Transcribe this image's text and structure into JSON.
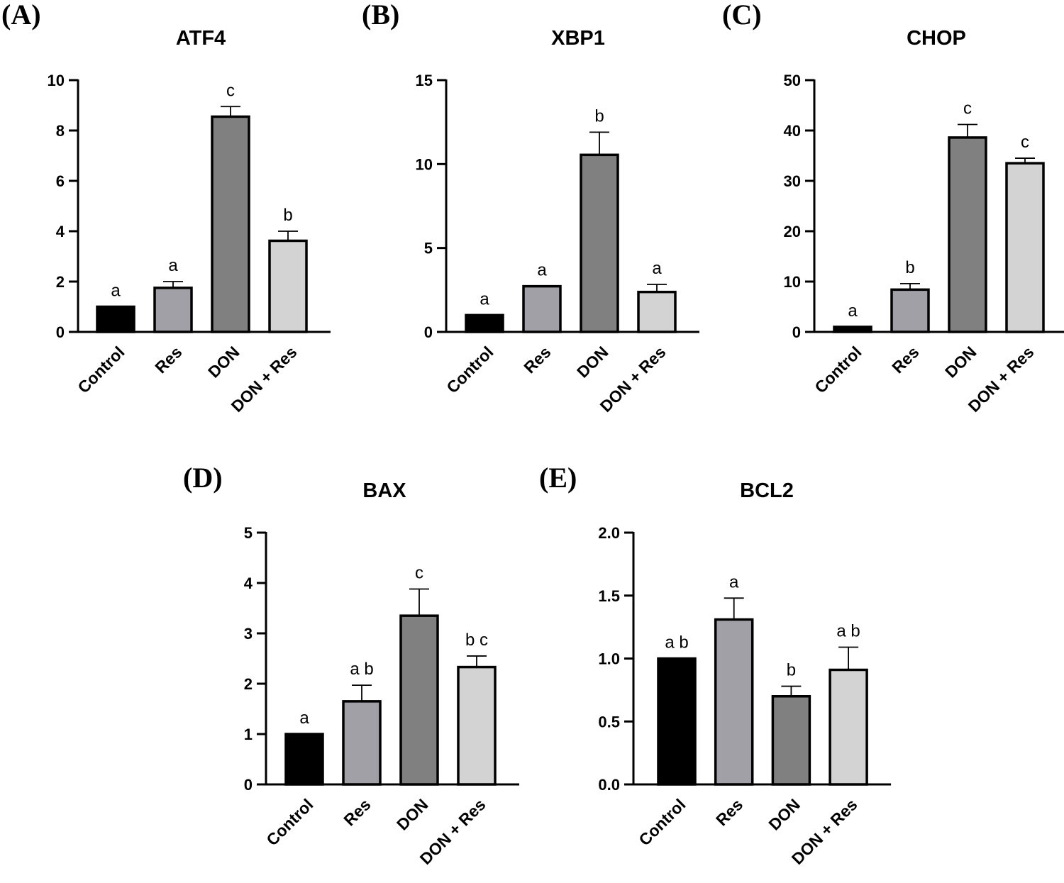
{
  "chart_data": [
    {
      "type": "bar",
      "panel": "(A)",
      "title": "ATF4",
      "categories": [
        "Control",
        "Res",
        "DON",
        "DON + Res"
      ],
      "values": [
        1.0,
        1.75,
        8.55,
        3.62
      ],
      "errors": [
        0.0,
        0.25,
        0.4,
        0.38
      ],
      "significance": [
        "a",
        "a",
        "c",
        "b"
      ],
      "colors": [
        "#000000",
        "#a0a0a6",
        "#808080",
        "#d3d3d3"
      ],
      "ylim": [
        0,
        10
      ],
      "yticks": [
        0,
        2,
        4,
        6,
        8,
        10
      ],
      "ytick_labels": [
        "0",
        "2",
        "4",
        "6",
        "8",
        "10"
      ],
      "grid": false
    },
    {
      "type": "bar",
      "panel": "(B)",
      "title": "XBP1",
      "categories": [
        "Control",
        "Res",
        "DON",
        "DON + Res"
      ],
      "values": [
        1.0,
        2.72,
        10.55,
        2.38
      ],
      "errors": [
        0.0,
        0.0,
        1.35,
        0.45
      ],
      "significance": [
        "a",
        "a",
        "b",
        "a"
      ],
      "colors": [
        "#000000",
        "#a0a0a6",
        "#808080",
        "#d3d3d3"
      ],
      "ylim": [
        0,
        15
      ],
      "yticks": [
        0,
        5,
        10,
        15
      ],
      "ytick_labels": [
        "0",
        "5",
        "10",
        "15"
      ],
      "grid": false
    },
    {
      "type": "bar",
      "panel": "(C)",
      "title": "CHOP",
      "categories": [
        "Control",
        "Res",
        "DON",
        "DON + Res"
      ],
      "values": [
        1.0,
        8.4,
        38.6,
        33.5
      ],
      "errors": [
        0.0,
        1.2,
        2.6,
        1.0
      ],
      "significance": [
        "a",
        "b",
        "c",
        "c"
      ],
      "colors": [
        "#000000",
        "#a0a0a6",
        "#808080",
        "#d3d3d3"
      ],
      "ylim": [
        0,
        50
      ],
      "yticks": [
        0,
        10,
        20,
        30,
        40,
        50
      ],
      "ytick_labels": [
        "0",
        "10",
        "20",
        "30",
        "40",
        "50"
      ],
      "grid": false
    },
    {
      "type": "bar",
      "panel": "(D)",
      "title": "BAX",
      "categories": [
        "Control",
        "Res",
        "DON",
        "DON + Res"
      ],
      "values": [
        1.0,
        1.65,
        3.35,
        2.33
      ],
      "errors": [
        0.0,
        0.32,
        0.53,
        0.22
      ],
      "significance": [
        "a",
        "a b",
        "c",
        "b c"
      ],
      "colors": [
        "#000000",
        "#a0a0a6",
        "#808080",
        "#d3d3d3"
      ],
      "ylim": [
        0,
        5
      ],
      "yticks": [
        0,
        1,
        2,
        3,
        4,
        5
      ],
      "ytick_labels": [
        "0",
        "1",
        "2",
        "3",
        "4",
        "5"
      ],
      "grid": false
    },
    {
      "type": "bar",
      "panel": "(E)",
      "title": "BCL2",
      "categories": [
        "Control",
        "Res",
        "DON",
        "DON + Res"
      ],
      "values": [
        1.0,
        1.31,
        0.7,
        0.91
      ],
      "errors": [
        0.0,
        0.17,
        0.08,
        0.18
      ],
      "significance": [
        "a b",
        "a",
        "b",
        "a b"
      ],
      "colors": [
        "#000000",
        "#a0a0a6",
        "#808080",
        "#d3d3d3"
      ],
      "ylim": [
        0,
        2.0
      ],
      "yticks": [
        0,
        0.5,
        1.0,
        1.5,
        2.0
      ],
      "ytick_labels": [
        "0.0",
        "0.5",
        "1.0",
        "1.5",
        "2.0"
      ],
      "grid": false
    }
  ]
}
